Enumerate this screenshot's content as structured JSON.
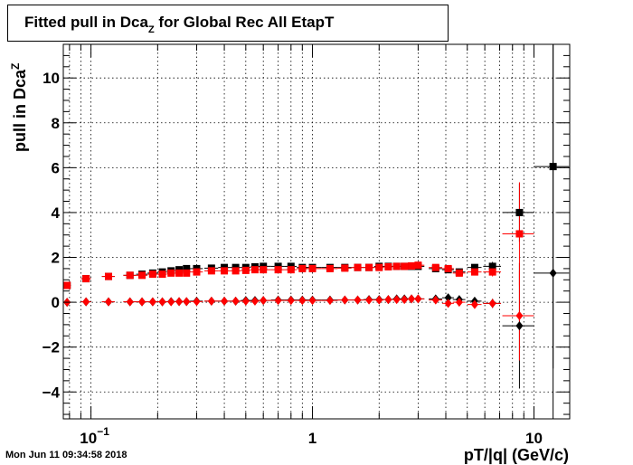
{
  "header": {
    "title_main": "Fitted pull in Dca",
    "title_sub": "Z",
    "title_rest": " for Global Rec All EtapT"
  },
  "footer": {
    "timestamp": "Mon Jun 11 09:34:58 2018"
  },
  "chart_data": {
    "type": "scatter",
    "title": "Fitted pull in Dca_Z for Global Rec All EtapT",
    "xlabel": "pT/|q| (GeV/c)",
    "ylabel_main": "pull in Dca",
    "ylabel_sub": "Z",
    "x_scale": "log",
    "xlim": [
      0.075,
      14.5
    ],
    "ylim": [
      -5.2,
      11.5
    ],
    "x_ticks": [
      {
        "value": 0.1,
        "base": "10",
        "exp": "−1"
      },
      {
        "value": 1,
        "label": "1"
      },
      {
        "value": 10,
        "label": "10"
      }
    ],
    "y_ticks": [
      -4,
      -2,
      0,
      2,
      4,
      6,
      8,
      10
    ],
    "y_tick_labels": [
      "−4",
      "−2",
      "0",
      "2",
      "4",
      "6",
      "8",
      "10"
    ],
    "grid": true,
    "colors": {
      "black": "#000000",
      "red": "#ff0000"
    },
    "series": [
      {
        "marker": "square",
        "color": "#000000",
        "x": [
          0.078,
          0.095,
          0.12,
          0.15,
          0.17,
          0.19,
          0.21,
          0.23,
          0.25,
          0.27,
          0.3,
          0.35,
          0.4,
          0.45,
          0.5,
          0.55,
          0.6,
          0.7,
          0.8,
          0.9,
          1.0,
          1.2,
          1.4,
          1.6,
          1.8,
          2.0,
          2.2,
          2.4,
          2.6,
          2.8,
          3.0,
          3.6,
          4.1,
          4.6,
          5.4,
          6.5,
          8.6,
          12.2
        ],
        "y": [
          0.75,
          1.05,
          1.15,
          1.2,
          1.25,
          1.3,
          1.35,
          1.4,
          1.45,
          1.5,
          1.5,
          1.52,
          1.55,
          1.55,
          1.55,
          1.58,
          1.6,
          1.6,
          1.6,
          1.55,
          1.55,
          1.55,
          1.55,
          1.55,
          1.55,
          1.6,
          1.6,
          1.6,
          1.6,
          1.6,
          1.6,
          1.5,
          1.45,
          1.35,
          1.55,
          1.6,
          4.0,
          6.05
        ],
        "xerr": [
          0.003,
          0.005,
          0.008,
          0.01,
          0.01,
          0.01,
          0.01,
          0.01,
          0.01,
          0.01,
          0.02,
          0.025,
          0.025,
          0.025,
          0.025,
          0.025,
          0.05,
          0.05,
          0.05,
          0.05,
          0.1,
          0.1,
          0.1,
          0.1,
          0.1,
          0.1,
          0.1,
          0.1,
          0.1,
          0.1,
          0.2,
          0.25,
          0.25,
          0.3,
          0.4,
          0.6,
          1.4,
          2.2
        ],
        "yerr": [
          0.08,
          0.08,
          0.07,
          0.07,
          0.07,
          0.06,
          0.06,
          0.06,
          0.06,
          0.06,
          0.06,
          0.06,
          0.06,
          0.06,
          0.06,
          0.06,
          0.06,
          0.06,
          0.06,
          0.06,
          0.06,
          0.06,
          0.06,
          0.06,
          0.06,
          0.06,
          0.06,
          0.06,
          0.06,
          0.06,
          0.08,
          0.1,
          0.1,
          0.15,
          0.15,
          0.2,
          1.3,
          9.0
        ]
      },
      {
        "marker": "diamond",
        "color": "#000000",
        "x": [
          0.078,
          0.095,
          0.12,
          0.15,
          0.17,
          0.19,
          0.21,
          0.23,
          0.25,
          0.27,
          0.3,
          0.35,
          0.4,
          0.45,
          0.5,
          0.55,
          0.6,
          0.7,
          0.8,
          0.9,
          1.0,
          1.2,
          1.4,
          1.6,
          1.8,
          2.0,
          2.2,
          2.4,
          2.6,
          2.8,
          3.0,
          3.6,
          4.1,
          4.6,
          5.4,
          6.5,
          8.6,
          12.2
        ],
        "y": [
          0.0,
          0.02,
          0.02,
          0.02,
          0.02,
          0.02,
          0.02,
          0.03,
          0.03,
          0.03,
          0.05,
          0.05,
          0.05,
          0.05,
          0.08,
          0.08,
          0.08,
          0.1,
          0.1,
          0.1,
          0.1,
          0.1,
          0.1,
          0.1,
          0.12,
          0.12,
          0.12,
          0.15,
          0.15,
          0.15,
          0.15,
          0.15,
          0.2,
          0.12,
          0.05,
          -0.05,
          -1.05,
          1.3
        ],
        "xerr": [
          0.003,
          0.005,
          0.008,
          0.01,
          0.01,
          0.01,
          0.01,
          0.01,
          0.01,
          0.01,
          0.02,
          0.025,
          0.025,
          0.025,
          0.025,
          0.025,
          0.05,
          0.05,
          0.05,
          0.05,
          0.1,
          0.1,
          0.1,
          0.1,
          0.1,
          0.1,
          0.1,
          0.1,
          0.1,
          0.1,
          0.2,
          0.25,
          0.25,
          0.3,
          0.4,
          0.6,
          1.4,
          2.2
        ],
        "yerr": [
          0.08,
          0.06,
          0.05,
          0.05,
          0.05,
          0.05,
          0.05,
          0.05,
          0.05,
          0.05,
          0.05,
          0.05,
          0.05,
          0.05,
          0.05,
          0.05,
          0.05,
          0.05,
          0.05,
          0.05,
          0.05,
          0.05,
          0.05,
          0.05,
          0.05,
          0.05,
          0.05,
          0.05,
          0.05,
          0.05,
          0.06,
          0.08,
          0.1,
          0.12,
          0.15,
          0.2,
          2.8,
          10.5
        ]
      },
      {
        "marker": "square",
        "color": "#ff0000",
        "x": [
          0.078,
          0.095,
          0.12,
          0.15,
          0.17,
          0.19,
          0.21,
          0.23,
          0.25,
          0.27,
          0.3,
          0.35,
          0.4,
          0.45,
          0.5,
          0.55,
          0.6,
          0.7,
          0.8,
          0.9,
          1.0,
          1.2,
          1.4,
          1.6,
          1.8,
          2.0,
          2.2,
          2.4,
          2.6,
          2.8,
          3.0,
          3.6,
          4.1,
          4.6,
          5.4,
          6.5,
          8.6
        ],
        "y": [
          0.75,
          1.05,
          1.15,
          1.2,
          1.2,
          1.25,
          1.25,
          1.3,
          1.3,
          1.3,
          1.35,
          1.4,
          1.4,
          1.4,
          1.42,
          1.45,
          1.45,
          1.45,
          1.45,
          1.5,
          1.5,
          1.5,
          1.52,
          1.55,
          1.55,
          1.55,
          1.58,
          1.6,
          1.6,
          1.62,
          1.65,
          1.55,
          1.5,
          1.3,
          1.35,
          1.35,
          3.05
        ],
        "xerr": [
          0.003,
          0.005,
          0.008,
          0.01,
          0.01,
          0.01,
          0.01,
          0.01,
          0.01,
          0.01,
          0.02,
          0.025,
          0.025,
          0.025,
          0.025,
          0.025,
          0.05,
          0.05,
          0.05,
          0.05,
          0.1,
          0.1,
          0.1,
          0.1,
          0.1,
          0.1,
          0.1,
          0.1,
          0.1,
          0.1,
          0.2,
          0.25,
          0.25,
          0.3,
          0.4,
          0.6,
          1.4
        ],
        "yerr": [
          0.08,
          0.08,
          0.07,
          0.07,
          0.07,
          0.06,
          0.06,
          0.06,
          0.06,
          0.06,
          0.06,
          0.06,
          0.06,
          0.06,
          0.06,
          0.06,
          0.06,
          0.06,
          0.06,
          0.06,
          0.06,
          0.06,
          0.06,
          0.06,
          0.06,
          0.06,
          0.06,
          0.06,
          0.06,
          0.06,
          0.08,
          0.1,
          0.1,
          0.15,
          0.15,
          0.2,
          2.3
        ]
      },
      {
        "marker": "diamond",
        "color": "#ff0000",
        "x": [
          0.078,
          0.095,
          0.12,
          0.15,
          0.17,
          0.19,
          0.21,
          0.23,
          0.25,
          0.27,
          0.3,
          0.35,
          0.4,
          0.45,
          0.5,
          0.55,
          0.6,
          0.7,
          0.8,
          0.9,
          1.0,
          1.2,
          1.4,
          1.6,
          1.8,
          2.0,
          2.2,
          2.4,
          2.6,
          2.8,
          3.0,
          3.6,
          4.1,
          4.6,
          5.4,
          6.5,
          8.6
        ],
        "y": [
          0.0,
          0.02,
          0.02,
          0.02,
          0.02,
          0.02,
          0.02,
          0.02,
          0.03,
          0.03,
          0.03,
          0.05,
          0.05,
          0.05,
          0.05,
          0.05,
          0.08,
          0.08,
          0.08,
          0.08,
          0.08,
          0.08,
          0.1,
          0.1,
          0.1,
          0.1,
          0.12,
          0.12,
          0.12,
          0.15,
          0.15,
          0.1,
          -0.05,
          0.0,
          -0.1,
          -0.05,
          -0.6
        ],
        "xerr": [
          0.003,
          0.005,
          0.008,
          0.01,
          0.01,
          0.01,
          0.01,
          0.01,
          0.01,
          0.01,
          0.02,
          0.025,
          0.025,
          0.025,
          0.025,
          0.025,
          0.05,
          0.05,
          0.05,
          0.05,
          0.1,
          0.1,
          0.1,
          0.1,
          0.1,
          0.1,
          0.1,
          0.1,
          0.1,
          0.1,
          0.2,
          0.25,
          0.25,
          0.3,
          0.4,
          0.6,
          1.4
        ],
        "yerr": [
          0.08,
          0.06,
          0.05,
          0.05,
          0.05,
          0.05,
          0.05,
          0.05,
          0.05,
          0.05,
          0.05,
          0.05,
          0.05,
          0.05,
          0.05,
          0.05,
          0.05,
          0.05,
          0.05,
          0.05,
          0.05,
          0.05,
          0.05,
          0.05,
          0.05,
          0.05,
          0.05,
          0.05,
          0.05,
          0.05,
          0.06,
          0.08,
          0.1,
          0.12,
          0.15,
          0.2,
          2.0
        ]
      }
    ]
  }
}
